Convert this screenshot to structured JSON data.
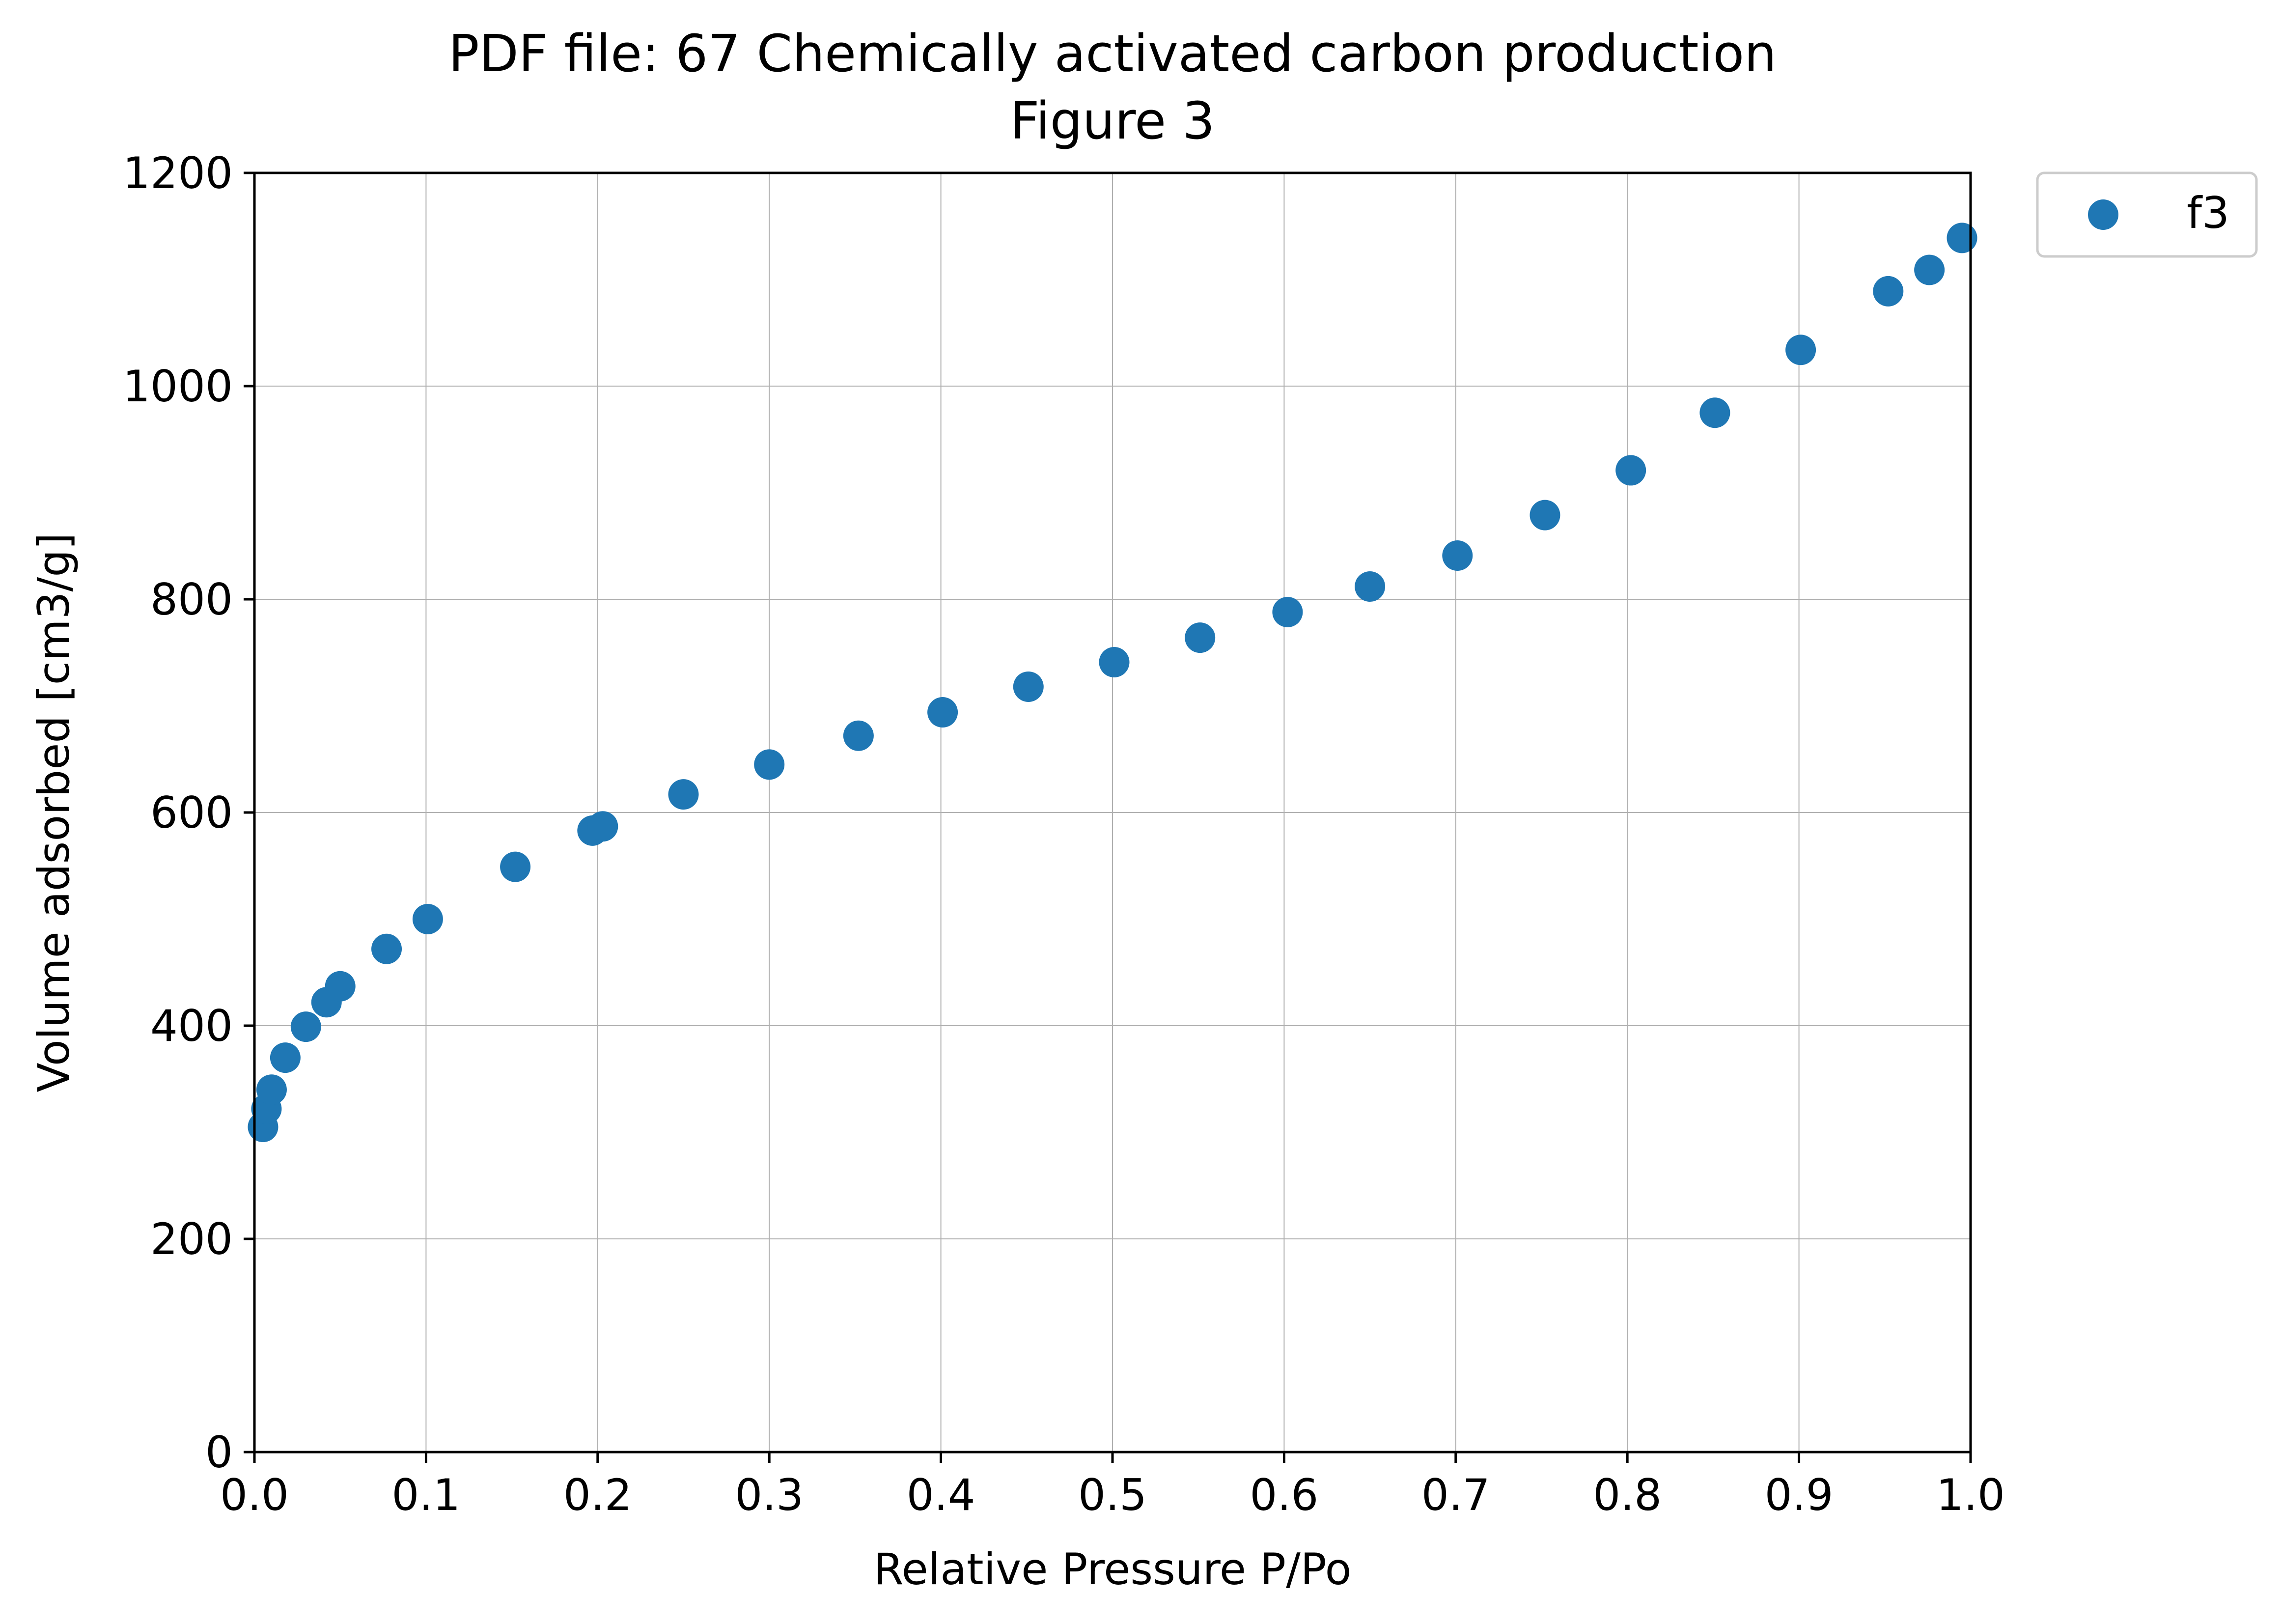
{
  "chart_data": {
    "type": "scatter",
    "title": "PDF file: 67 Chemically activated carbon production",
    "subtitle": "Figure 3",
    "xlabel": "Relative Pressure P/Po",
    "ylabel": "Volume adsorbed [cm3/g]",
    "xlim": [
      0.0,
      1.0
    ],
    "ylim": [
      0,
      1200
    ],
    "xticks": [
      "0.0",
      "0.1",
      "0.2",
      "0.3",
      "0.4",
      "0.5",
      "0.6",
      "0.7",
      "0.8",
      "0.9",
      "1.0"
    ],
    "yticks": [
      "0",
      "200",
      "400",
      "600",
      "800",
      "1000",
      "1200"
    ],
    "grid": true,
    "legend_position": "outside-top-right",
    "series": [
      {
        "name": "f3",
        "color": "#1f77b4",
        "points": [
          {
            "x": 0.005,
            "y": 305
          },
          {
            "x": 0.007,
            "y": 322
          },
          {
            "x": 0.01,
            "y": 340
          },
          {
            "x": 0.018,
            "y": 370
          },
          {
            "x": 0.03,
            "y": 399
          },
          {
            "x": 0.042,
            "y": 422
          },
          {
            "x": 0.05,
            "y": 437
          },
          {
            "x": 0.077,
            "y": 472
          },
          {
            "x": 0.101,
            "y": 500
          },
          {
            "x": 0.152,
            "y": 549
          },
          {
            "x": 0.197,
            "y": 583
          },
          {
            "x": 0.203,
            "y": 587
          },
          {
            "x": 0.25,
            "y": 617
          },
          {
            "x": 0.3,
            "y": 645
          },
          {
            "x": 0.352,
            "y": 672
          },
          {
            "x": 0.401,
            "y": 694
          },
          {
            "x": 0.451,
            "y": 718
          },
          {
            "x": 0.501,
            "y": 741
          },
          {
            "x": 0.551,
            "y": 764
          },
          {
            "x": 0.602,
            "y": 788
          },
          {
            "x": 0.65,
            "y": 812
          },
          {
            "x": 0.701,
            "y": 841
          },
          {
            "x": 0.752,
            "y": 879
          },
          {
            "x": 0.802,
            "y": 921
          },
          {
            "x": 0.851,
            "y": 975
          },
          {
            "x": 0.901,
            "y": 1034
          },
          {
            "x": 0.952,
            "y": 1089
          },
          {
            "x": 0.976,
            "y": 1109
          },
          {
            "x": 0.995,
            "y": 1139
          }
        ]
      }
    ]
  }
}
